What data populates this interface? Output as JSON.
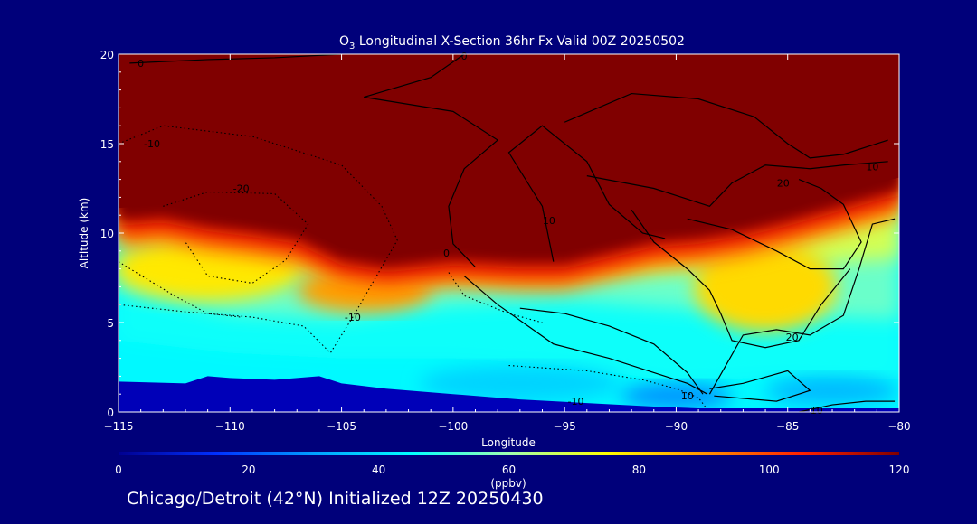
{
  "chart_data": {
    "type": "heatmap",
    "title_prefix": "O",
    "title_sub": "3",
    "title_rest": " Longitudinal X-Section 36hr  Fx Valid 00Z 20250502",
    "xlabel": "Longitude",
    "ylabel": "Altitude (km)",
    "xlim": [
      -115,
      -80
    ],
    "ylim": [
      0,
      20
    ],
    "x_ticks": [
      -115,
      -110,
      -105,
      -100,
      -95,
      -90,
      -85,
      -80
    ],
    "x_tick_labels": [
      "−115",
      "−110",
      "−105",
      "−100",
      "−95",
      "−90",
      "−85",
      "−80"
    ],
    "y_ticks": [
      0,
      5,
      10,
      15,
      20
    ],
    "y_tick_labels": [
      "0",
      "5",
      "10",
      "15",
      "20"
    ],
    "colorbar": {
      "label": "(ppbv)",
      "range": [
        0,
        120
      ],
      "ticks": [
        0,
        20,
        40,
        60,
        80,
        100,
        120
      ],
      "tick_labels": [
        "0",
        "20",
        "40",
        "60",
        "80",
        "100",
        "120"
      ],
      "colors": [
        "#000090",
        "#0030ff",
        "#00a0ff",
        "#00ffff",
        "#a0ffb0",
        "#ffff00",
        "#ff9000",
        "#ff2000",
        "#800000"
      ]
    },
    "terrain_km": {
      "lon": [
        -115,
        -112,
        -111,
        -110,
        -108,
        -106,
        -105,
        -103,
        -100,
        -97,
        -94,
        -91,
        -89,
        -87,
        -84,
        -82,
        -80
      ],
      "alt": [
        1.7,
        1.6,
        2.0,
        1.9,
        1.8,
        2.0,
        1.6,
        1.3,
        1.0,
        0.7,
        0.5,
        0.3,
        0.2,
        0.2,
        0.2,
        0.2,
        0.2
      ]
    },
    "tropopause_km": {
      "lon": [
        -115,
        -113,
        -111,
        -109,
        -107,
        -105,
        -103,
        -100,
        -97,
        -95,
        -93,
        -91,
        -89,
        -87,
        -85,
        -83,
        -81,
        -80
      ],
      "alt": [
        10.8,
        11.0,
        10.5,
        10.2,
        9.8,
        8.6,
        8.2,
        8.6,
        8.4,
        8.4,
        9.0,
        9.6,
        9.8,
        10.2,
        10.8,
        11.5,
        12.2,
        12.5
      ]
    },
    "surface_levels": [
      {
        "lon": [
          -115,
          -110,
          -105,
          -100,
          -95,
          -90,
          -85,
          -80
        ],
        "alt": [
          4.0,
          3.3,
          3.0,
          3.0,
          2.6,
          1.7,
          2.0,
          1.8
        ],
        "value": 46
      },
      {
        "lon": [
          -115,
          -110,
          -105,
          -100,
          -95,
          -90,
          -85,
          -80
        ],
        "alt": [
          6.8,
          5.5,
          5.2,
          6.0,
          6.3,
          5.8,
          5.4,
          5.2
        ],
        "value": 55
      },
      {
        "lon": [
          -115,
          -110,
          -105,
          -100,
          -95,
          -90,
          -85,
          -80
        ],
        "alt": [
          9.8,
          8.6,
          7.6,
          7.4,
          7.6,
          7.8,
          8.2,
          8.6
        ],
        "value": 68
      }
    ],
    "blobs": [
      {
        "lon": -111,
        "alt": 8.0,
        "rx": 4.2,
        "ry": 1.8,
        "value": 78
      },
      {
        "lon": -104,
        "alt": 6.8,
        "rx": 3.0,
        "ry": 1.2,
        "value": 88
      },
      {
        "lon": -86,
        "alt": 7.0,
        "rx": 3.2,
        "ry": 2.5,
        "value": 80
      },
      {
        "lon": -97,
        "alt": 1.6,
        "rx": 4.5,
        "ry": 1.0,
        "value": 38
      },
      {
        "lon": -90,
        "alt": 0.9,
        "rx": 2.5,
        "ry": 0.7,
        "value": 28
      },
      {
        "lon": -83,
        "alt": 1.2,
        "rx": 3.0,
        "ry": 0.8,
        "value": 34
      }
    ],
    "contours_solid": [
      {
        "value": 0,
        "lon": [
          -114.5,
          -111,
          -108,
          -105
        ],
        "alt": [
          19.5,
          19.7,
          19.8,
          20.0
        ]
      },
      {
        "value": 0,
        "lon": [
          -99.5,
          -101,
          -104,
          -100,
          -98,
          -99.5,
          -100.2,
          -100,
          -99
        ],
        "alt": [
          20.0,
          18.7,
          17.6,
          16.8,
          15.2,
          13.6,
          11.5,
          9.4,
          8.1
        ]
      },
      {
        "value": 10,
        "lon": [
          -95.5,
          -96,
          -97.5,
          -96,
          -94,
          -93,
          -91.5,
          -90.5
        ],
        "alt": [
          8.4,
          11.5,
          14.5,
          16.0,
          14.0,
          11.6,
          10.0,
          9.7
        ]
      },
      {
        "value": 20,
        "lon": [
          -95,
          -92,
          -89,
          -86.5,
          -85,
          -84,
          -82.5,
          -80.5
        ],
        "alt": [
          16.2,
          17.8,
          17.5,
          16.5,
          15.0,
          14.2,
          14.4,
          15.2
        ]
      },
      {
        "value": 20,
        "lon": [
          -94,
          -91,
          -88.5,
          -87.5,
          -86,
          -84,
          -82.5,
          -80.5
        ],
        "alt": [
          13.2,
          12.5,
          11.5,
          12.8,
          13.8,
          13.6,
          13.8,
          14.0
        ]
      },
      {
        "value": 20,
        "lon": [
          -89.5,
          -87.5,
          -85.5,
          -84,
          -82.5,
          -81.7,
          -82.5,
          -83.5,
          -84.5
        ],
        "alt": [
          10.8,
          10.2,
          9.0,
          8.0,
          8.0,
          9.5,
          11.6,
          12.5,
          13.0
        ]
      },
      {
        "value": 20,
        "lon": [
          -92,
          -91,
          -89.5,
          -88.5,
          -88,
          -87.5,
          -86,
          -84.5,
          -83.5,
          -82.2
        ],
        "alt": [
          11.3,
          9.5,
          8.0,
          6.8,
          5.5,
          4.0,
          3.6,
          4.0,
          6.0,
          8.0
        ]
      },
      {
        "value": 10,
        "lon": [
          -80.2,
          -81.2,
          -81.8,
          -82.5,
          -84,
          -85.5,
          -87,
          -88.5
        ],
        "alt": [
          10.8,
          10.5,
          8.0,
          5.4,
          4.3,
          4.6,
          4.3,
          1.0
        ]
      },
      {
        "value": 10,
        "lon": [
          -97,
          -95,
          -93,
          -91,
          -89.5,
          -88.8
        ],
        "alt": [
          5.8,
          5.5,
          4.8,
          3.8,
          2.2,
          1.0
        ]
      },
      {
        "value": 10,
        "lon": [
          -99.5,
          -98,
          -95.5,
          -93,
          -91,
          -89.5,
          -88.6
        ],
        "alt": [
          7.6,
          6.0,
          3.8,
          3.0,
          2.2,
          1.6,
          1.0
        ]
      },
      {
        "value": 10,
        "lon": [
          -88.5,
          -87,
          -85,
          -84,
          -85.5,
          -88.3
        ],
        "alt": [
          1.3,
          1.6,
          2.3,
          1.2,
          0.6,
          0.9
        ]
      },
      {
        "value": 10,
        "lon": [
          -84.5,
          -83,
          -81.5,
          -80.2
        ],
        "alt": [
          0.0,
          0.4,
          0.6,
          0.6
        ]
      }
    ],
    "contours_dotted": [
      {
        "value": -10,
        "lon": [
          -115,
          -113,
          -109,
          -105,
          -103.2,
          -102.5,
          -104.5,
          -105.5,
          -106.7,
          -109,
          -112,
          -115
        ],
        "alt": [
          15.0,
          16.0,
          15.4,
          13.8,
          11.5,
          9.6,
          5.3,
          3.3,
          4.8,
          5.3,
          5.6,
          6.0
        ]
      },
      {
        "value": -20,
        "lon": [
          -113,
          -111,
          -108,
          -106.5,
          -107.5,
          -109,
          -111,
          -112
        ],
        "alt": [
          11.5,
          12.3,
          12.2,
          10.5,
          8.5,
          7.2,
          7.6,
          9.5
        ]
      },
      {
        "value": -20,
        "lon": [
          -115,
          -112.5,
          -111,
          -109.5
        ],
        "alt": [
          8.4,
          6.5,
          5.5,
          5.3
        ]
      },
      {
        "value": -10,
        "lon": [
          -97.5,
          -94,
          -91.5,
          -90,
          -89,
          -88.7
        ],
        "alt": [
          2.6,
          2.3,
          1.8,
          1.3,
          0.8,
          0.3
        ]
      },
      {
        "value": 0,
        "lon": [
          -100.2,
          -99.5,
          -97.5,
          -96
        ],
        "alt": [
          7.8,
          6.5,
          5.5,
          5.0
        ]
      }
    ],
    "contour_labels": [
      {
        "text": "0",
        "lon": -114,
        "alt": 19.5
      },
      {
        "text": "0",
        "lon": -99.5,
        "alt": 19.9
      },
      {
        "text": "-10",
        "lon": -113.5,
        "alt": 15.0
      },
      {
        "text": "-20",
        "lon": -109.5,
        "alt": 12.5
      },
      {
        "text": "-10",
        "lon": -104.5,
        "alt": 5.3
      },
      {
        "text": "0",
        "lon": -100.3,
        "alt": 8.9
      },
      {
        "text": "10",
        "lon": -95.7,
        "alt": 10.7
      },
      {
        "text": "20",
        "lon": -85.2,
        "alt": 12.8
      },
      {
        "text": "10",
        "lon": -81.2,
        "alt": 13.7
      },
      {
        "text": "20",
        "lon": -84.8,
        "alt": 4.2
      },
      {
        "text": "-10",
        "lon": -94.5,
        "alt": 0.6
      },
      {
        "text": "10",
        "lon": -83.7,
        "alt": 0.1
      },
      {
        "text": "10",
        "lon": -89.5,
        "alt": 0.9
      }
    ]
  },
  "footer": {
    "text": "Chicago/Detroit (42°N) Initialized 12Z 20250430"
  }
}
